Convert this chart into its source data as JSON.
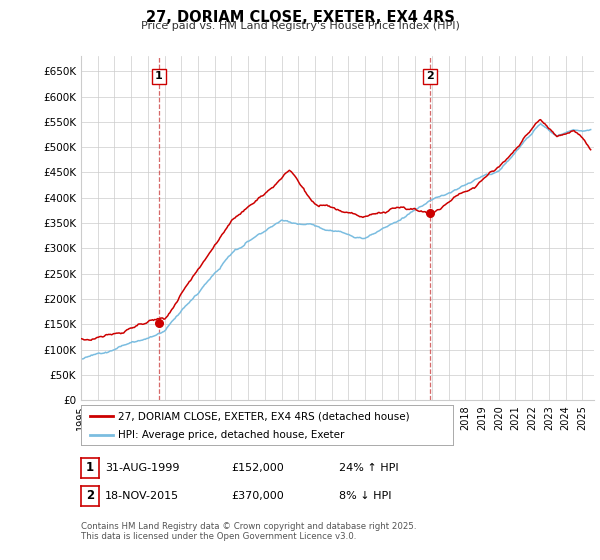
{
  "title": "27, DORIAM CLOSE, EXETER, EX4 4RS",
  "subtitle": "Price paid vs. HM Land Registry's House Price Index (HPI)",
  "ylim": [
    0,
    680000
  ],
  "yticks": [
    0,
    50000,
    100000,
    150000,
    200000,
    250000,
    300000,
    350000,
    400000,
    450000,
    500000,
    550000,
    600000,
    650000
  ],
  "ytick_labels": [
    "£0",
    "£50K",
    "£100K",
    "£150K",
    "£200K",
    "£250K",
    "£300K",
    "£350K",
    "£400K",
    "£450K",
    "£500K",
    "£550K",
    "£600K",
    "£650K"
  ],
  "xlim_start": 1995.0,
  "xlim_end": 2025.7,
  "sale1_date": 1999.66,
  "sale1_price": 152000,
  "sale2_date": 2015.88,
  "sale2_price": 370000,
  "legend_label1": "27, DORIAM CLOSE, EXETER, EX4 4RS (detached house)",
  "legend_label2": "HPI: Average price, detached house, Exeter",
  "table_row1": [
    "1",
    "31-AUG-1999",
    "£152,000",
    "24% ↑ HPI"
  ],
  "table_row2": [
    "2",
    "18-NOV-2015",
    "£370,000",
    "8% ↓ HPI"
  ],
  "footnote": "Contains HM Land Registry data © Crown copyright and database right 2025.\nThis data is licensed under the Open Government Licence v3.0.",
  "hpi_color": "#7bbde0",
  "price_color": "#cc0000",
  "grid_color": "#cccccc",
  "background_color": "#ffffff"
}
